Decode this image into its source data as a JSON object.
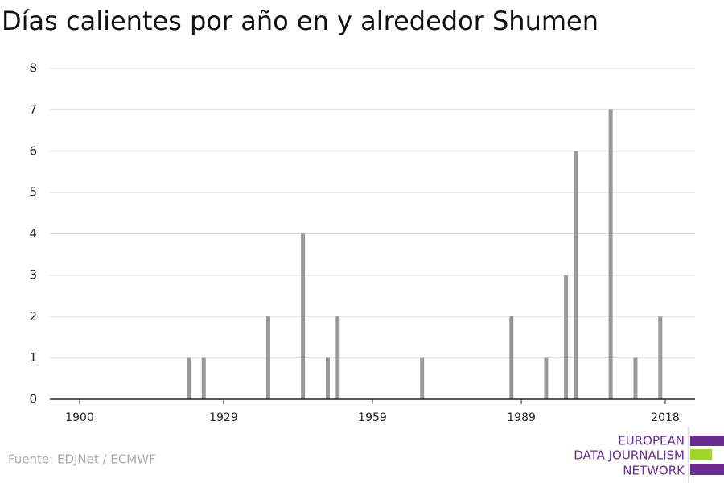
{
  "chart_data": {
    "type": "bar",
    "title": "Días calientes por año en y alrededor Shumen",
    "x": [
      1922,
      1925,
      1938,
      1945,
      1950,
      1952,
      1969,
      1987,
      1994,
      1998,
      2000,
      2007,
      2012,
      2017
    ],
    "values": [
      1,
      1,
      2,
      4,
      1,
      2,
      1,
      2,
      1,
      3,
      6,
      7,
      1,
      2
    ],
    "color": "#999999",
    "xlim": [
      1894,
      2024
    ],
    "xticks": [
      1900,
      1929,
      1959,
      1989,
      2018
    ],
    "ylim": [
      0,
      8
    ],
    "yticks": [
      0,
      1,
      2,
      3,
      4,
      5,
      6,
      7,
      8
    ],
    "grid": true
  },
  "source": "Fuente: EDJNet / ECMWF",
  "logo": [
    "EUROPEAN",
    "DATA JOURNALISM",
    "NETWORK"
  ]
}
